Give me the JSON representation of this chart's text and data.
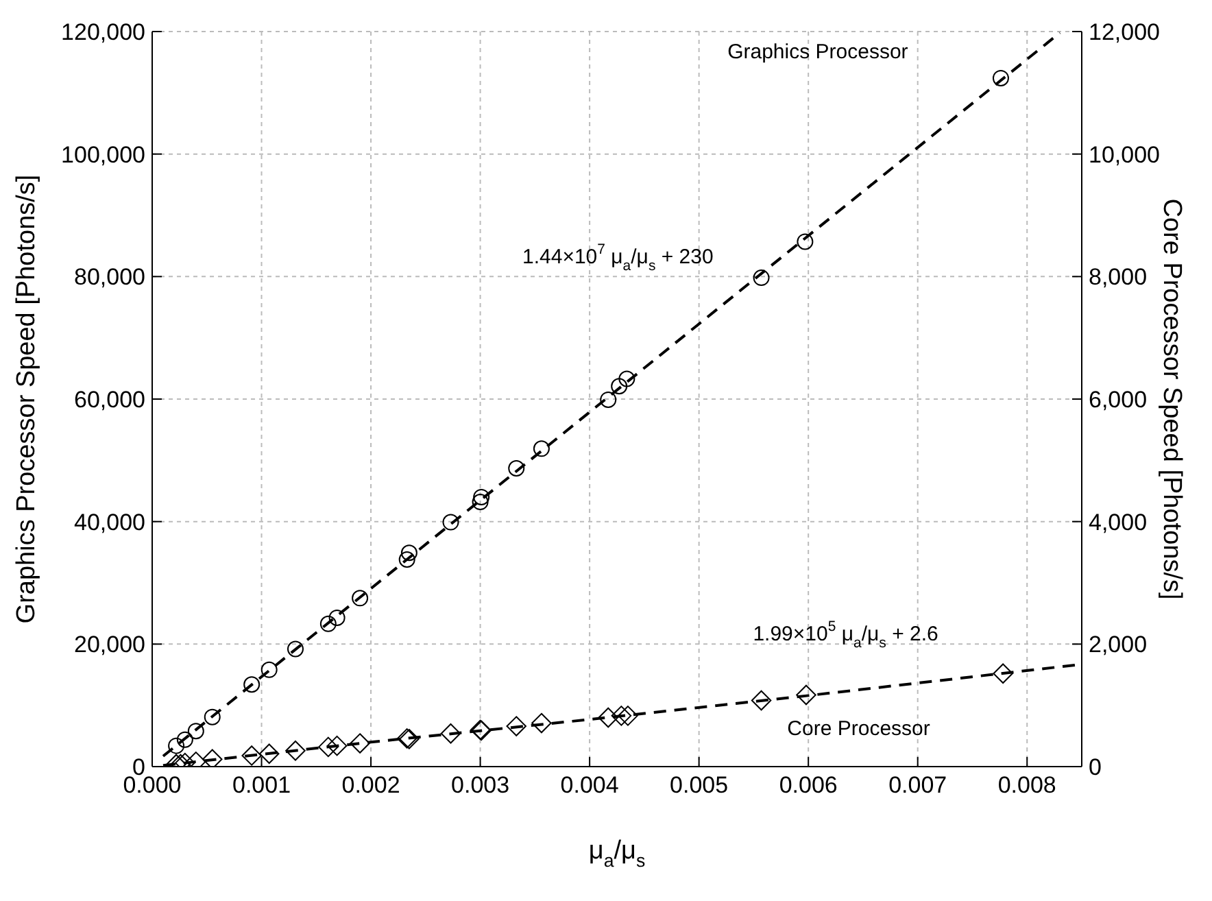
{
  "chart_data": {
    "type": "scatter",
    "xlabel": "μ$_{a}$/μ$_{s}$",
    "ylabel": "Graphics Processor Speed [Photons/s]",
    "y2label": "Core Processor Speed [Photons/s]",
    "xlim": [
      0,
      0.0085
    ],
    "xticks": [
      {
        "value": 0,
        "label": "0.000"
      },
      {
        "value": 0.001,
        "label": "0.001"
      },
      {
        "value": 0.002,
        "label": "0.002"
      },
      {
        "value": 0.003,
        "label": "0.003"
      },
      {
        "value": 0.004,
        "label": "0.004"
      },
      {
        "value": 0.005,
        "label": "0.005"
      },
      {
        "value": 0.006,
        "label": "0.006"
      },
      {
        "value": 0.007,
        "label": "0.007"
      },
      {
        "value": 0.008,
        "label": "0.008"
      }
    ],
    "ylim": [
      0,
      120000
    ],
    "yticks": [
      0,
      {
        "value": 20000,
        "label": "20,000"
      },
      {
        "value": 40000,
        "label": "40,000"
      },
      {
        "value": 60000,
        "label": "60,000"
      },
      {
        "value": 80000,
        "label": "80,000"
      },
      {
        "value": 100000,
        "label": "100,000"
      },
      {
        "value": 120000,
        "label": "120,000"
      }
    ],
    "y2lim": [
      0,
      12000
    ],
    "y2ticks": [
      0,
      {
        "value": 2000,
        "label": "2,000"
      },
      {
        "value": 4000,
        "label": "4,000"
      },
      {
        "value": 6000,
        "label": "6,000"
      },
      {
        "value": 8000,
        "label": "8,000"
      },
      {
        "value": 10000,
        "label": "10,000"
      },
      {
        "value": 12000,
        "label": "12,000"
      }
    ],
    "grid": true,
    "legend": false,
    "series": [
      {
        "marker": "circle",
        "color": "#000000",
        "x": [
          0.00022,
          0.0003,
          0.0004,
          0.00055,
          0.00091,
          0.00107,
          0.00131,
          0.00161,
          0.00169,
          0.0019,
          0.00233,
          0.00235,
          0.00273,
          0.003,
          0.00301,
          0.00333,
          0.00356,
          0.00417,
          0.00427,
          0.00434,
          0.00557,
          0.00597,
          0.00776
        ],
        "values": [
          3400,
          4400,
          5800,
          8100,
          13400,
          15800,
          19200,
          23300,
          24300,
          27500,
          33800,
          34900,
          39900,
          43200,
          44000,
          48700,
          51900,
          59900,
          62100,
          63300,
          79800,
          85700,
          112400
        ]
      },
      {
        "marker": "diamond",
        "axis": "y2",
        "color": "#000000",
        "x": [
          0.00022,
          0.00026,
          0.0003,
          0.0004,
          0.00055,
          0.00091,
          0.00107,
          0.00131,
          0.00161,
          0.00169,
          0.0019,
          0.00233,
          0.00235,
          0.00273,
          0.003,
          0.00301,
          0.00333,
          0.00356,
          0.00417,
          0.00429,
          0.00435,
          0.00557,
          0.00598,
          0.00778
        ],
        "values": [
          40,
          40,
          60,
          80,
          120,
          180,
          210,
          260,
          320,
          340,
          380,
          460,
          450,
          540,
          600,
          590,
          660,
          710,
          800,
          830,
          830,
          1080,
          1170,
          1520
        ]
      },
      {
        "type": "line",
        "marker": "none",
        "line_style": "dashed",
        "color": "#000000",
        "x": [
          0.0001,
          0.0083
        ],
        "values": [
          1700,
          119800
        ]
      },
      {
        "type": "line",
        "marker": "none",
        "line_style": "dashed",
        "axis": "y2",
        "color": "#000000",
        "x": [
          0.0001,
          0.002,
          0.004,
          0.006,
          0.0085
        ],
        "values": [
          20,
          400,
          770,
          1160,
          1670
        ]
      }
    ],
    "annotations": [
      "Graphics Processor",
      "1.44×10$^{7}$ μ$_{a}$/μ$_{s}$ + 230",
      "1.99×10$^{5}$ μ$_{a}$/μ$_{s}$ + 2.6",
      "Core Processor"
    ]
  }
}
